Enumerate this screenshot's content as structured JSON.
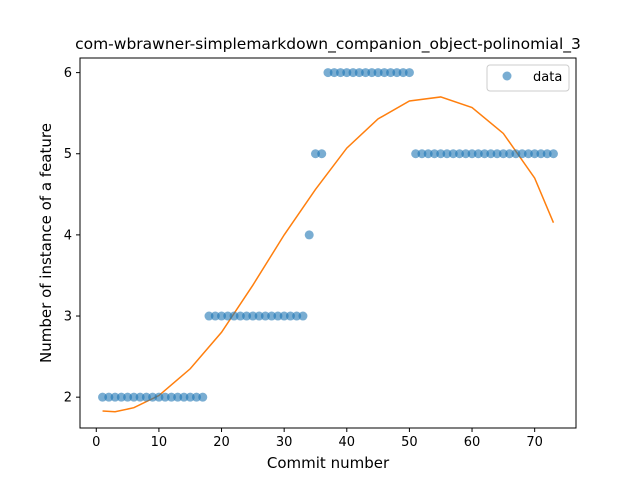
{
  "chart_data": {
    "type": "scatter",
    "title": "com-wbrawner-simplemarkdown_companion_object-polinomial_3",
    "xlabel": "Commit number",
    "ylabel": "Number of instance of a feature",
    "xlim": [
      -2.6,
      76.6
    ],
    "ylim": [
      1.62,
      6.18
    ],
    "xticks": [
      0,
      10,
      20,
      30,
      40,
      50,
      60,
      70
    ],
    "yticks": [
      2,
      3,
      4,
      5,
      6
    ],
    "legend": {
      "placement": "top-right",
      "entries": [
        "data"
      ]
    },
    "grid": false,
    "colors": {
      "points": "#1f77b4",
      "fit": "#ff7f0e"
    },
    "series": [
      {
        "name": "data",
        "kind": "scatter",
        "x": [
          1,
          2,
          3,
          4,
          5,
          6,
          7,
          8,
          9,
          10,
          11,
          12,
          13,
          14,
          15,
          16,
          17,
          18,
          19,
          20,
          21,
          22,
          23,
          24,
          25,
          26,
          27,
          28,
          29,
          30,
          31,
          32,
          33,
          34,
          35,
          36,
          37,
          38,
          39,
          40,
          41,
          42,
          43,
          44,
          45,
          46,
          47,
          48,
          49,
          50,
          51,
          52,
          53,
          54,
          55,
          56,
          57,
          58,
          59,
          60,
          61,
          62,
          63,
          64,
          65,
          66,
          67,
          68,
          69,
          70,
          71,
          72,
          73
        ],
        "y": [
          2,
          2,
          2,
          2,
          2,
          2,
          2,
          2,
          2,
          2,
          2,
          2,
          2,
          2,
          2,
          2,
          2,
          3,
          3,
          3,
          3,
          3,
          3,
          3,
          3,
          3,
          3,
          3,
          3,
          3,
          3,
          3,
          3,
          4,
          5,
          5,
          6,
          6,
          6,
          6,
          6,
          6,
          6,
          6,
          6,
          6,
          6,
          6,
          6,
          6,
          5,
          5,
          5,
          5,
          5,
          5,
          5,
          5,
          5,
          5,
          5,
          5,
          5,
          5,
          5,
          5,
          5,
          5,
          5,
          5,
          5,
          5,
          5
        ]
      },
      {
        "kind": "line",
        "x": [
          1,
          3,
          6,
          10,
          15,
          20,
          25,
          30,
          35,
          40,
          45,
          50,
          55,
          60,
          65,
          70,
          73
        ],
        "y": [
          1.83,
          1.82,
          1.87,
          2.02,
          2.35,
          2.8,
          3.38,
          4.0,
          4.56,
          5.07,
          5.43,
          5.65,
          5.7,
          5.57,
          5.25,
          4.7,
          4.15
        ]
      }
    ]
  }
}
